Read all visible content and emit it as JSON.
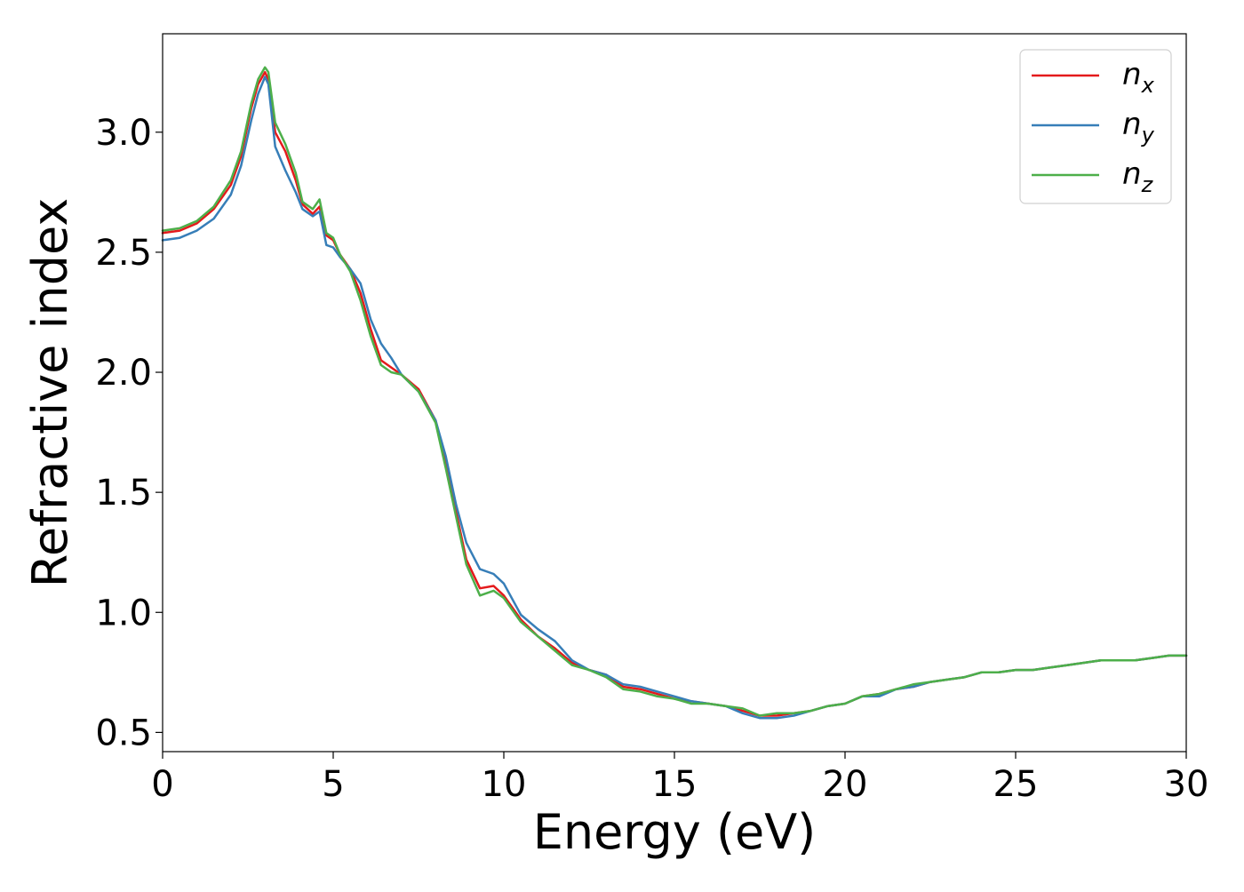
{
  "chart_data": {
    "type": "line",
    "xlabel": "Energy (eV)",
    "ylabel": "Refractive index",
    "xlim": [
      0,
      30
    ],
    "ylim": [
      0.42,
      3.41
    ],
    "x_ticks": [
      0,
      5,
      10,
      15,
      20,
      25,
      30
    ],
    "y_ticks": [
      0.5,
      1.0,
      1.5,
      2.0,
      2.5,
      3.0
    ],
    "x_tick_labels": [
      "0",
      "5",
      "10",
      "15",
      "20",
      "25",
      "30"
    ],
    "y_tick_labels": [
      "0.5",
      "1.0",
      "1.5",
      "2.0",
      "2.5",
      "3.0"
    ],
    "grid": false,
    "legend_position": "top-right",
    "series": [
      {
        "name": "n_x",
        "label_base": "n",
        "label_sub": "x",
        "color": "#e41a1c",
        "points": [
          [
            0,
            2.58
          ],
          [
            0.5,
            2.59
          ],
          [
            1.0,
            2.62
          ],
          [
            1.5,
            2.68
          ],
          [
            2.0,
            2.78
          ],
          [
            2.3,
            2.9
          ],
          [
            2.6,
            3.1
          ],
          [
            2.8,
            3.2
          ],
          [
            3.0,
            3.25
          ],
          [
            3.1,
            3.22
          ],
          [
            3.3,
            3.0
          ],
          [
            3.6,
            2.92
          ],
          [
            3.9,
            2.8
          ],
          [
            4.1,
            2.7
          ],
          [
            4.4,
            2.66
          ],
          [
            4.6,
            2.69
          ],
          [
            4.8,
            2.57
          ],
          [
            5.0,
            2.55
          ],
          [
            5.2,
            2.49
          ],
          [
            5.5,
            2.43
          ],
          [
            5.8,
            2.33
          ],
          [
            6.1,
            2.18
          ],
          [
            6.4,
            2.05
          ],
          [
            6.7,
            2.02
          ],
          [
            7.0,
            1.99
          ],
          [
            7.5,
            1.93
          ],
          [
            8.0,
            1.8
          ],
          [
            8.3,
            1.63
          ],
          [
            8.6,
            1.42
          ],
          [
            8.9,
            1.22
          ],
          [
            9.3,
            1.1
          ],
          [
            9.7,
            1.11
          ],
          [
            10.0,
            1.07
          ],
          [
            10.5,
            0.97
          ],
          [
            11.0,
            0.9
          ],
          [
            11.5,
            0.85
          ],
          [
            12.0,
            0.79
          ],
          [
            12.5,
            0.76
          ],
          [
            13.0,
            0.74
          ],
          [
            13.5,
            0.69
          ],
          [
            14.0,
            0.68
          ],
          [
            14.5,
            0.66
          ],
          [
            15.0,
            0.64
          ],
          [
            15.5,
            0.63
          ],
          [
            16.0,
            0.62
          ],
          [
            16.5,
            0.61
          ],
          [
            17.0,
            0.59
          ],
          [
            17.5,
            0.57
          ],
          [
            18.0,
            0.57
          ],
          [
            18.5,
            0.58
          ],
          [
            19.0,
            0.59
          ],
          [
            19.5,
            0.61
          ],
          [
            20.0,
            0.62
          ],
          [
            20.5,
            0.65
          ],
          [
            21.0,
            0.66
          ],
          [
            21.5,
            0.68
          ],
          [
            22.0,
            0.69
          ],
          [
            22.5,
            0.71
          ],
          [
            23.0,
            0.72
          ],
          [
            23.5,
            0.73
          ],
          [
            24.0,
            0.75
          ],
          [
            24.5,
            0.75
          ],
          [
            25.0,
            0.76
          ],
          [
            25.5,
            0.76
          ],
          [
            26.0,
            0.77
          ],
          [
            26.5,
            0.78
          ],
          [
            27.0,
            0.79
          ],
          [
            27.5,
            0.8
          ],
          [
            28.0,
            0.8
          ],
          [
            28.5,
            0.8
          ],
          [
            29.0,
            0.81
          ],
          [
            29.5,
            0.82
          ],
          [
            30.0,
            0.82
          ]
        ]
      },
      {
        "name": "n_y",
        "label_base": "n",
        "label_sub": "y",
        "color": "#377eb8",
        "points": [
          [
            0,
            2.55
          ],
          [
            0.5,
            2.56
          ],
          [
            1.0,
            2.59
          ],
          [
            1.5,
            2.64
          ],
          [
            2.0,
            2.74
          ],
          [
            2.3,
            2.86
          ],
          [
            2.6,
            3.05
          ],
          [
            2.8,
            3.16
          ],
          [
            3.0,
            3.23
          ],
          [
            3.1,
            3.2
          ],
          [
            3.3,
            2.94
          ],
          [
            3.6,
            2.84
          ],
          [
            3.9,
            2.75
          ],
          [
            4.1,
            2.68
          ],
          [
            4.4,
            2.65
          ],
          [
            4.6,
            2.67
          ],
          [
            4.8,
            2.53
          ],
          [
            5.0,
            2.52
          ],
          [
            5.2,
            2.48
          ],
          [
            5.5,
            2.43
          ],
          [
            5.8,
            2.37
          ],
          [
            6.1,
            2.22
          ],
          [
            6.4,
            2.12
          ],
          [
            6.7,
            2.06
          ],
          [
            7.0,
            1.99
          ],
          [
            7.5,
            1.92
          ],
          [
            8.0,
            1.8
          ],
          [
            8.3,
            1.65
          ],
          [
            8.6,
            1.45
          ],
          [
            8.9,
            1.29
          ],
          [
            9.3,
            1.18
          ],
          [
            9.7,
            1.16
          ],
          [
            10.0,
            1.12
          ],
          [
            10.5,
            0.99
          ],
          [
            11.0,
            0.93
          ],
          [
            11.5,
            0.88
          ],
          [
            12.0,
            0.8
          ],
          [
            12.5,
            0.76
          ],
          [
            13.0,
            0.74
          ],
          [
            13.5,
            0.7
          ],
          [
            14.0,
            0.69
          ],
          [
            14.5,
            0.67
          ],
          [
            15.0,
            0.65
          ],
          [
            15.5,
            0.63
          ],
          [
            16.0,
            0.62
          ],
          [
            16.5,
            0.61
          ],
          [
            17.0,
            0.58
          ],
          [
            17.5,
            0.56
          ],
          [
            18.0,
            0.56
          ],
          [
            18.5,
            0.57
          ],
          [
            19.0,
            0.59
          ],
          [
            19.5,
            0.61
          ],
          [
            20.0,
            0.62
          ],
          [
            20.5,
            0.65
          ],
          [
            21.0,
            0.65
          ],
          [
            21.5,
            0.68
          ],
          [
            22.0,
            0.69
          ],
          [
            22.5,
            0.71
          ],
          [
            23.0,
            0.72
          ],
          [
            23.5,
            0.73
          ],
          [
            24.0,
            0.75
          ],
          [
            24.5,
            0.75
          ],
          [
            25.0,
            0.76
          ],
          [
            25.5,
            0.76
          ],
          [
            26.0,
            0.77
          ],
          [
            26.5,
            0.78
          ],
          [
            27.0,
            0.79
          ],
          [
            27.5,
            0.8
          ],
          [
            28.0,
            0.8
          ],
          [
            28.5,
            0.8
          ],
          [
            29.0,
            0.81
          ],
          [
            29.5,
            0.82
          ],
          [
            30.0,
            0.82
          ]
        ]
      },
      {
        "name": "n_z",
        "label_base": "n",
        "label_sub": "z",
        "color": "#4daf4a",
        "points": [
          [
            0,
            2.59
          ],
          [
            0.5,
            2.6
          ],
          [
            1.0,
            2.63
          ],
          [
            1.5,
            2.69
          ],
          [
            2.0,
            2.8
          ],
          [
            2.3,
            2.92
          ],
          [
            2.6,
            3.12
          ],
          [
            2.8,
            3.22
          ],
          [
            3.0,
            3.27
          ],
          [
            3.1,
            3.25
          ],
          [
            3.3,
            3.04
          ],
          [
            3.6,
            2.95
          ],
          [
            3.9,
            2.83
          ],
          [
            4.1,
            2.71
          ],
          [
            4.4,
            2.68
          ],
          [
            4.6,
            2.72
          ],
          [
            4.8,
            2.58
          ],
          [
            5.0,
            2.56
          ],
          [
            5.2,
            2.49
          ],
          [
            5.5,
            2.42
          ],
          [
            5.8,
            2.3
          ],
          [
            6.1,
            2.15
          ],
          [
            6.4,
            2.03
          ],
          [
            6.7,
            2.0
          ],
          [
            7.0,
            1.99
          ],
          [
            7.5,
            1.92
          ],
          [
            8.0,
            1.79
          ],
          [
            8.3,
            1.6
          ],
          [
            8.6,
            1.4
          ],
          [
            8.9,
            1.2
          ],
          [
            9.3,
            1.07
          ],
          [
            9.7,
            1.09
          ],
          [
            10.0,
            1.06
          ],
          [
            10.5,
            0.96
          ],
          [
            11.0,
            0.9
          ],
          [
            11.5,
            0.84
          ],
          [
            12.0,
            0.78
          ],
          [
            12.5,
            0.76
          ],
          [
            13.0,
            0.73
          ],
          [
            13.5,
            0.68
          ],
          [
            14.0,
            0.67
          ],
          [
            14.5,
            0.65
          ],
          [
            15.0,
            0.64
          ],
          [
            15.5,
            0.62
          ],
          [
            16.0,
            0.62
          ],
          [
            16.5,
            0.61
          ],
          [
            17.0,
            0.6
          ],
          [
            17.5,
            0.57
          ],
          [
            18.0,
            0.58
          ],
          [
            18.5,
            0.58
          ],
          [
            19.0,
            0.59
          ],
          [
            19.5,
            0.61
          ],
          [
            20.0,
            0.62
          ],
          [
            20.5,
            0.65
          ],
          [
            21.0,
            0.66
          ],
          [
            21.5,
            0.68
          ],
          [
            22.0,
            0.7
          ],
          [
            22.5,
            0.71
          ],
          [
            23.0,
            0.72
          ],
          [
            23.5,
            0.73
          ],
          [
            24.0,
            0.75
          ],
          [
            24.5,
            0.75
          ],
          [
            25.0,
            0.76
          ],
          [
            25.5,
            0.76
          ],
          [
            26.0,
            0.77
          ],
          [
            26.5,
            0.78
          ],
          [
            27.0,
            0.79
          ],
          [
            27.5,
            0.8
          ],
          [
            28.0,
            0.8
          ],
          [
            28.5,
            0.8
          ],
          [
            29.0,
            0.81
          ],
          [
            29.5,
            0.82
          ],
          [
            30.0,
            0.82
          ]
        ]
      }
    ]
  }
}
